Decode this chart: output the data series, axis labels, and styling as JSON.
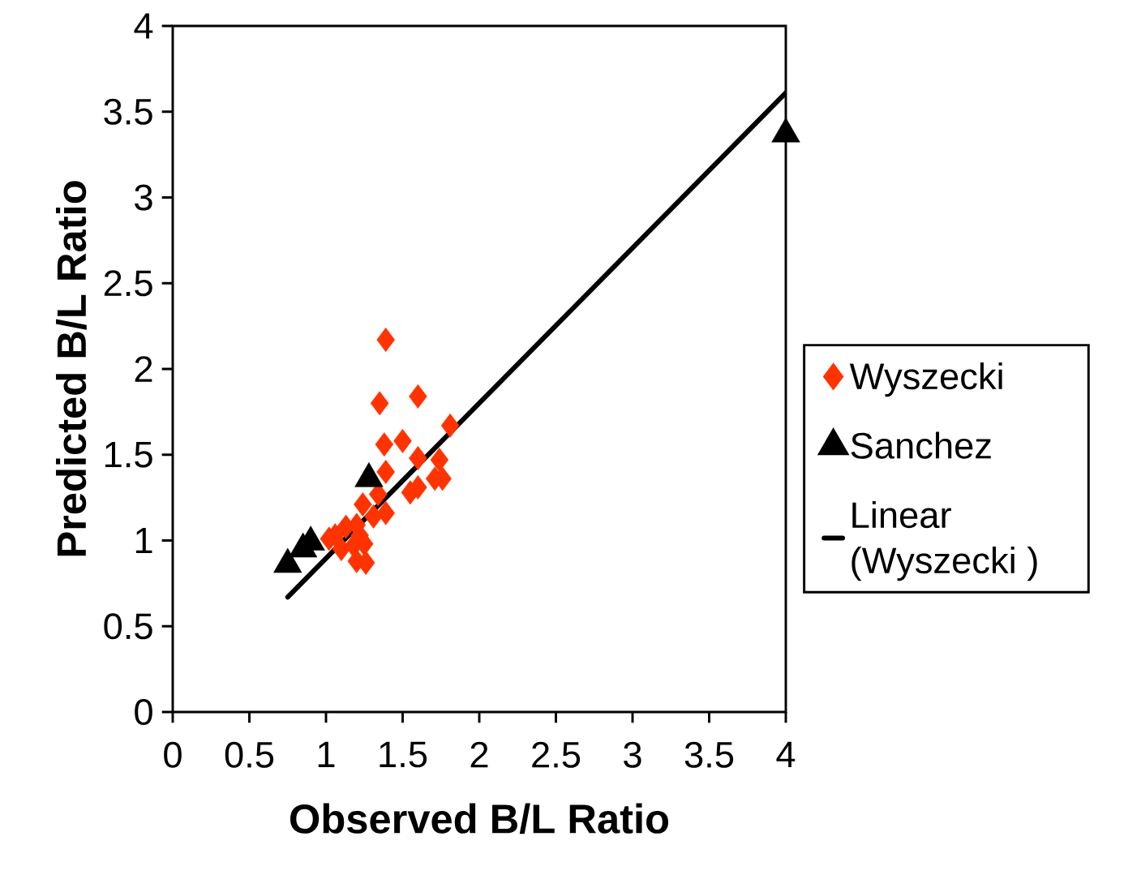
{
  "chart_data": {
    "type": "scatter",
    "xlabel": "Observed  B/L Ratio",
    "ylabel": "Predicted B/L Ratio",
    "xlim": [
      0,
      4
    ],
    "ylim": [
      0,
      4
    ],
    "xticks": [
      0,
      0.5,
      1,
      1.5,
      2,
      2.5,
      3,
      3.5,
      4
    ],
    "yticks": [
      0,
      0.5,
      1,
      1.5,
      2,
      2.5,
      3,
      3.5,
      4
    ],
    "grid": false,
    "legend": "right",
    "series": [
      {
        "name": "Wyszecki",
        "marker": "diamond",
        "color": "#ff3300",
        "x": [
          1.39,
          1.35,
          1.6,
          1.38,
          1.5,
          1.81,
          1.6,
          1.74,
          1.76,
          1.71,
          1.39,
          1.55,
          1.6,
          1.39,
          1.31,
          1.24,
          1.34,
          1.13,
          1.2,
          1.02,
          1.06,
          1.1,
          1.17,
          1.2,
          1.26,
          1.25,
          1.18,
          1.22
        ],
        "values": [
          2.17,
          1.8,
          1.84,
          1.56,
          1.58,
          1.67,
          1.48,
          1.47,
          1.36,
          1.36,
          1.4,
          1.28,
          1.31,
          1.16,
          1.14,
          1.21,
          1.27,
          1.08,
          1.09,
          1.01,
          1.03,
          0.95,
          null,
          0.88,
          0.87,
          0.98,
          0.97,
          1.03
        ]
      },
      {
        "name": "Sanchez",
        "marker": "triangle",
        "color": "#000000",
        "x": [
          0.75,
          0.85,
          0.9,
          1.28,
          4.0
        ],
        "values": [
          0.86,
          0.95,
          0.99,
          1.36,
          3.37
        ]
      },
      {
        "name": "Linear (Wyszecki )",
        "type": "line",
        "marker": "none",
        "line_style": "solid",
        "color": "#000000",
        "x": [
          0.75,
          4.0
        ],
        "values": [
          0.67,
          3.61
        ]
      }
    ]
  }
}
